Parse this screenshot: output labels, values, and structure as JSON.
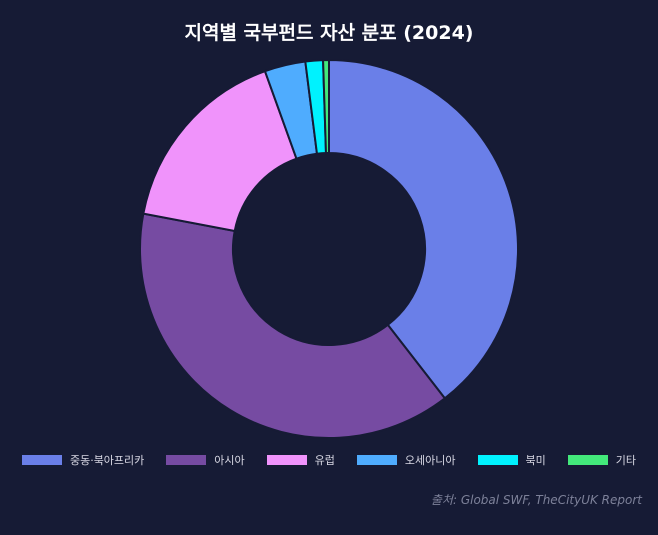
{
  "chart_data": {
    "type": "pie",
    "title": "지역별 국부펀드 자산 분포 (2024)",
    "donut": true,
    "categories": [
      "중동·북아프리카",
      "아시아",
      "유럽",
      "오세아니아",
      "북미",
      "기타"
    ],
    "values": [
      39.5,
      38.5,
      16.5,
      3.5,
      1.5,
      0.5
    ],
    "colors": [
      "#6a7fe8",
      "#764ba2",
      "#f093fb",
      "#4facfe",
      "#00f2fe",
      "#43e97b"
    ],
    "legend": "bottom",
    "source": "출처: Global SWF, TheCityUK Report"
  }
}
